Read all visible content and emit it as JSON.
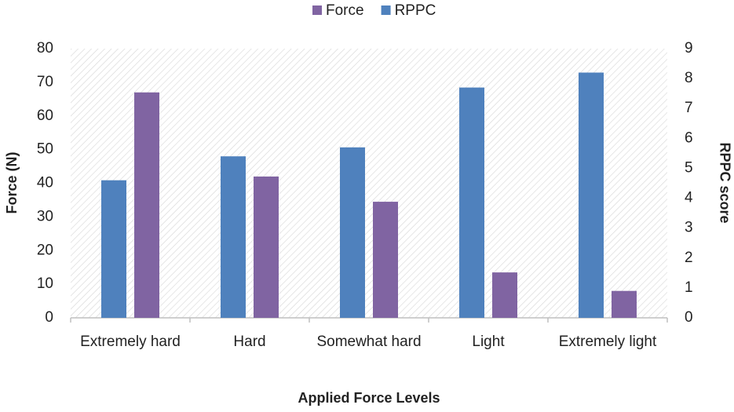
{
  "chart_data": {
    "type": "bar",
    "xlabel": "Applied Force Levels",
    "ylabel": "Force (N)",
    "y2label": "RPPC score",
    "categories": [
      "Extremely hard",
      "Hard",
      "Somewhat hard",
      "Light",
      "Extremely light"
    ],
    "series": [
      {
        "name": "Force",
        "color": "#8064a2",
        "values": [
          67,
          42,
          34.5,
          13.5,
          8
        ]
      },
      {
        "name": "RPPC",
        "color": "#4f81bd",
        "axis": "y2",
        "values": [
          4.6,
          5.4,
          5.7,
          7.7,
          8.2
        ]
      }
    ],
    "ylim": [
      0,
      80
    ],
    "yticks": [
      0,
      10,
      20,
      30,
      40,
      50,
      60,
      70,
      80
    ],
    "y2lim": [
      0,
      9
    ],
    "y2ticks": [
      0,
      1,
      2,
      3,
      4,
      5,
      6,
      7,
      8,
      9
    ],
    "legend": "top"
  }
}
